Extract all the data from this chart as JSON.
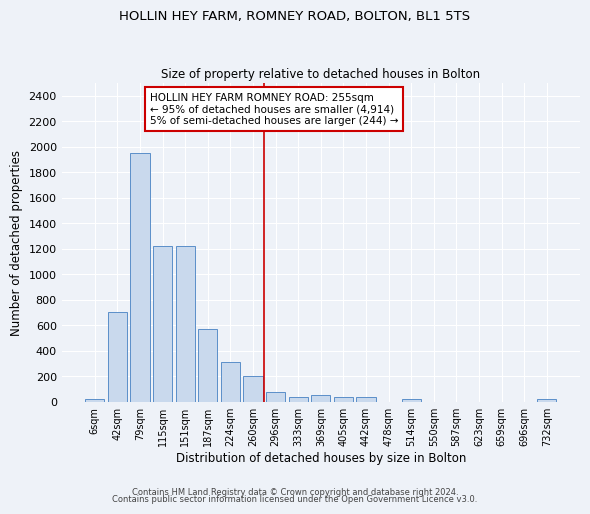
{
  "title": "HOLLIN HEY FARM, ROMNEY ROAD, BOLTON, BL1 5TS",
  "subtitle": "Size of property relative to detached houses in Bolton",
  "xlabel": "Distribution of detached houses by size in Bolton",
  "ylabel": "Number of detached properties",
  "bin_labels": [
    "6sqm",
    "42sqm",
    "79sqm",
    "115sqm",
    "151sqm",
    "187sqm",
    "224sqm",
    "260sqm",
    "296sqm",
    "333sqm",
    "369sqm",
    "405sqm",
    "442sqm",
    "478sqm",
    "514sqm",
    "550sqm",
    "587sqm",
    "623sqm",
    "659sqm",
    "696sqm",
    "732sqm"
  ],
  "bar_heights": [
    20,
    700,
    1950,
    1220,
    1220,
    570,
    310,
    200,
    80,
    40,
    50,
    35,
    35,
    0,
    20,
    0,
    0,
    0,
    0,
    0,
    20
  ],
  "bar_color": "#c9d9ed",
  "bar_edge_color": "#5b8fc9",
  "vline_x": 7.5,
  "vline_color": "#cc0000",
  "annotation_line1": "HOLLIN HEY FARM ROMNEY ROAD: 255sqm",
  "annotation_line2": "← 95% of detached houses are smaller (4,914)",
  "annotation_line3": "5% of semi-detached houses are larger (244) →",
  "annotation_box_color": "#ffffff",
  "annotation_box_edge": "#cc0000",
  "ylim": [
    0,
    2500
  ],
  "yticks": [
    0,
    200,
    400,
    600,
    800,
    1000,
    1200,
    1400,
    1600,
    1800,
    2000,
    2200,
    2400
  ],
  "fig_bg_color": "#eef2f8",
  "ax_bg_color": "#eef2f8",
  "grid_color": "#ffffff",
  "footer1": "Contains HM Land Registry data © Crown copyright and database right 2024.",
  "footer2": "Contains public sector information licensed under the Open Government Licence v3.0."
}
